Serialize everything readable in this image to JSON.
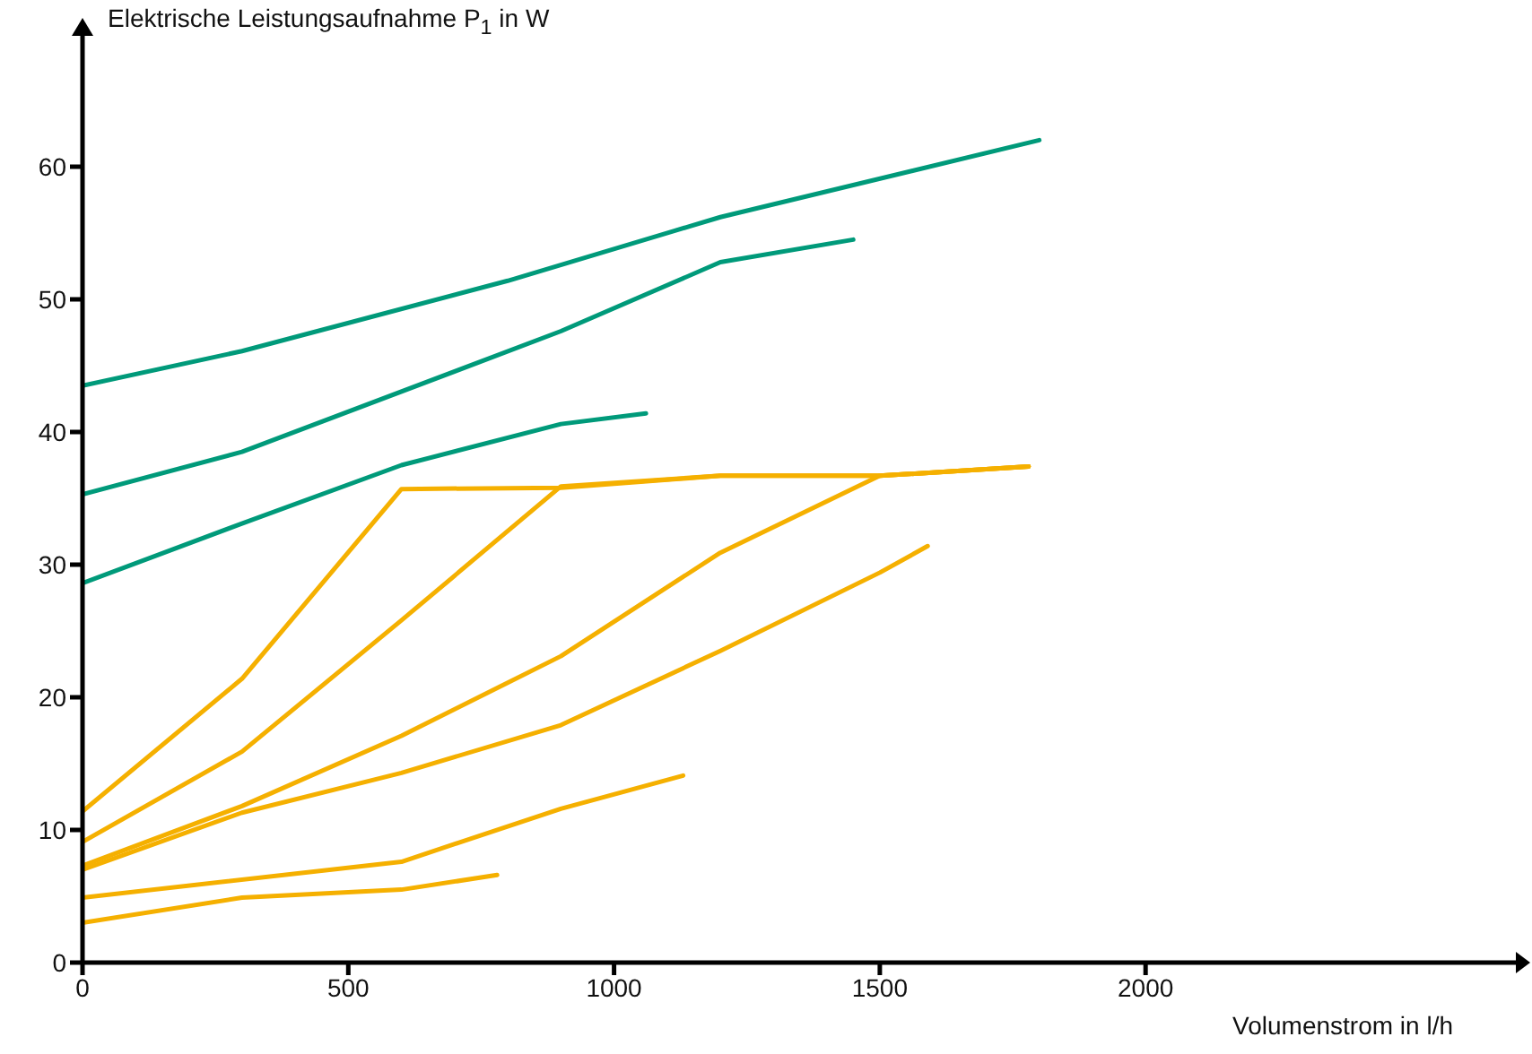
{
  "chart_data": {
    "type": "line",
    "ylabel": "Elektrische Leistungsaufnahme P$_{1}$ in W",
    "xlabel": "Volumenstrom in l/h",
    "xlim": [
      0,
      2700
    ],
    "ylim": [
      0,
      70
    ],
    "xticks": [
      0,
      500,
      1000,
      1500,
      2000
    ],
    "yticks": [
      0,
      10,
      20,
      30,
      40,
      50,
      60
    ],
    "marker": "none",
    "line_style": "solid",
    "series": [
      {
        "color": "#009a7a",
        "x": [
          0,
          300,
          800,
          1200,
          1800
        ],
        "values": [
          43.5,
          46.1,
          51.4,
          56.2,
          62.0
        ]
      },
      {
        "color": "#009a7a",
        "x": [
          0,
          300,
          900,
          1200,
          1450
        ],
        "values": [
          35.3,
          38.5,
          47.6,
          52.8,
          54.5
        ]
      },
      {
        "color": "#009a7a",
        "x": [
          0,
          300,
          600,
          900,
          1060
        ],
        "values": [
          28.6,
          33.1,
          37.5,
          40.6,
          41.4
        ]
      },
      {
        "color": "#f5b000",
        "x": [
          0,
          300,
          600,
          900,
          1200,
          1500,
          1780
        ],
        "values": [
          11.4,
          21.4,
          35.7,
          35.8,
          36.7,
          36.7,
          37.4
        ]
      },
      {
        "color": "#f5b000",
        "x": [
          0,
          300,
          600,
          900,
          1200,
          1500,
          1780
        ],
        "values": [
          9.1,
          15.9,
          25.8,
          35.9,
          36.7,
          36.7,
          37.4
        ]
      },
      {
        "color": "#f5b000",
        "x": [
          0,
          300,
          600,
          900,
          1200,
          1500,
          1780
        ],
        "values": [
          7.3,
          11.8,
          17.1,
          23.1,
          30.9,
          36.7,
          37.4
        ]
      },
      {
        "color": "#f5b000",
        "x": [
          0,
          300,
          600,
          900,
          1200,
          1500,
          1590
        ],
        "values": [
          7.0,
          11.3,
          14.3,
          17.9,
          23.5,
          29.4,
          31.4
        ]
      },
      {
        "color": "#f5b000",
        "x": [
          0,
          600,
          900,
          1130
        ],
        "values": [
          4.9,
          7.6,
          11.6,
          14.1
        ]
      },
      {
        "color": "#f5b000",
        "x": [
          0,
          300,
          600,
          780
        ],
        "values": [
          3.0,
          4.9,
          5.5,
          6.6
        ]
      }
    ]
  }
}
